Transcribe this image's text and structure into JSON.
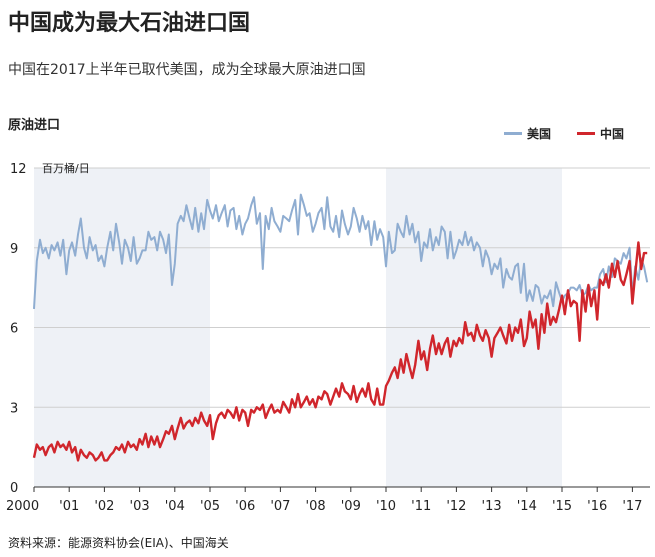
{
  "title": "中国成为最大石油进口国",
  "subtitle": "中国在2017上半年已取代美国，成为全球最大原油进口国",
  "source": "资料来源：能源资料协会(EIA)、中国海关",
  "chart_data": {
    "type": "line",
    "title": "原油进口",
    "ylabel": "百万桶/日",
    "xlabel": "",
    "ylim": [
      0,
      12
    ],
    "yticks": [
      0,
      3,
      6,
      9,
      12
    ],
    "xlim": [
      2000,
      2017.5
    ],
    "xticks": [
      {
        "x": 2000,
        "label": "2000"
      },
      {
        "x": 2001,
        "label": "'01"
      },
      {
        "x": 2002,
        "label": "'02"
      },
      {
        "x": 2003,
        "label": "'03"
      },
      {
        "x": 2004,
        "label": "'04"
      },
      {
        "x": 2005,
        "label": "'05"
      },
      {
        "x": 2006,
        "label": "'06"
      },
      {
        "x": 2007,
        "label": "'07"
      },
      {
        "x": 2008,
        "label": "'08"
      },
      {
        "x": 2009,
        "label": "'09"
      },
      {
        "x": 2010,
        "label": "'10"
      },
      {
        "x": 2011,
        "label": "'11"
      },
      {
        "x": 2012,
        "label": "'12"
      },
      {
        "x": 2013,
        "label": "'13"
      },
      {
        "x": 2014,
        "label": "'14"
      },
      {
        "x": 2015,
        "label": "'15"
      },
      {
        "x": 2016,
        "label": "'16"
      },
      {
        "x": 2017,
        "label": "'17"
      }
    ],
    "shaded_bands": [
      [
        2000,
        2005
      ],
      [
        2010,
        2015
      ]
    ],
    "grid": true,
    "legend_position": "top-right",
    "series": [
      {
        "name": "美国",
        "color": "#8fadd1",
        "x": [
          2000.0,
          2000.08,
          2000.17,
          2000.25,
          2000.33,
          2000.42,
          2000.5,
          2000.58,
          2000.67,
          2000.75,
          2000.83,
          2000.92,
          2001.0,
          2001.08,
          2001.17,
          2001.25,
          2001.33,
          2001.42,
          2001.5,
          2001.58,
          2001.67,
          2001.75,
          2001.83,
          2001.92,
          2002.0,
          2002.08,
          2002.17,
          2002.25,
          2002.33,
          2002.42,
          2002.5,
          2002.58,
          2002.67,
          2002.75,
          2002.83,
          2002.92,
          2003.0,
          2003.08,
          2003.17,
          2003.25,
          2003.33,
          2003.42,
          2003.5,
          2003.58,
          2003.67,
          2003.75,
          2003.83,
          2003.92,
          2004.0,
          2004.08,
          2004.17,
          2004.25,
          2004.33,
          2004.42,
          2004.5,
          2004.58,
          2004.67,
          2004.75,
          2004.83,
          2004.92,
          2005.0,
          2005.08,
          2005.17,
          2005.25,
          2005.33,
          2005.42,
          2005.5,
          2005.58,
          2005.67,
          2005.75,
          2005.83,
          2005.92,
          2006.0,
          2006.08,
          2006.17,
          2006.25,
          2006.33,
          2006.42,
          2006.5,
          2006.58,
          2006.67,
          2006.75,
          2006.83,
          2006.92,
          2007.0,
          2007.08,
          2007.17,
          2007.25,
          2007.33,
          2007.42,
          2007.5,
          2007.58,
          2007.67,
          2007.75,
          2007.83,
          2007.92,
          2008.0,
          2008.08,
          2008.17,
          2008.25,
          2008.33,
          2008.42,
          2008.5,
          2008.58,
          2008.67,
          2008.75,
          2008.83,
          2008.92,
          2009.0,
          2009.08,
          2009.17,
          2009.25,
          2009.33,
          2009.42,
          2009.5,
          2009.58,
          2009.67,
          2009.75,
          2009.83,
          2009.92,
          2010.0,
          2010.08,
          2010.17,
          2010.25,
          2010.33,
          2010.42,
          2010.5,
          2010.58,
          2010.67,
          2010.75,
          2010.83,
          2010.92,
          2011.0,
          2011.08,
          2011.17,
          2011.25,
          2011.33,
          2011.42,
          2011.5,
          2011.58,
          2011.67,
          2011.75,
          2011.83,
          2011.92,
          2012.0,
          2012.08,
          2012.17,
          2012.25,
          2012.33,
          2012.42,
          2012.5,
          2012.58,
          2012.67,
          2012.75,
          2012.83,
          2012.92,
          2013.0,
          2013.08,
          2013.17,
          2013.25,
          2013.33,
          2013.42,
          2013.5,
          2013.58,
          2013.67,
          2013.75,
          2013.83,
          2013.92,
          2014.0,
          2014.08,
          2014.17,
          2014.25,
          2014.33,
          2014.42,
          2014.5,
          2014.58,
          2014.67,
          2014.75,
          2014.83,
          2014.92,
          2015.0,
          2015.08,
          2015.17,
          2015.25,
          2015.33,
          2015.42,
          2015.5,
          2015.58,
          2015.67,
          2015.75,
          2015.83,
          2015.92,
          2016.0,
          2016.08,
          2016.17,
          2016.25,
          2016.33,
          2016.42,
          2016.5,
          2016.58,
          2016.67,
          2016.75,
          2016.83,
          2016.92,
          2017.0,
          2017.08,
          2017.17,
          2017.25,
          2017.33,
          2017.42
        ],
        "values": [
          6.7,
          8.5,
          9.3,
          8.8,
          9.0,
          8.6,
          9.1,
          8.9,
          9.2,
          8.7,
          9.3,
          8.0,
          8.9,
          9.2,
          8.7,
          9.5,
          10.1,
          9.0,
          8.6,
          9.4,
          8.9,
          9.1,
          8.5,
          8.7,
          8.3,
          9.0,
          9.6,
          8.9,
          9.9,
          9.2,
          8.4,
          9.3,
          9.0,
          8.5,
          9.4,
          8.4,
          8.6,
          8.9,
          8.9,
          9.6,
          9.3,
          9.4,
          8.9,
          9.6,
          9.3,
          8.8,
          9.5,
          7.6,
          8.4,
          9.9,
          10.2,
          10.0,
          10.6,
          10.1,
          9.7,
          10.5,
          9.6,
          10.3,
          9.7,
          10.8,
          10.4,
          10.1,
          10.6,
          10.0,
          10.3,
          10.6,
          9.8,
          10.4,
          10.5,
          9.7,
          10.2,
          9.5,
          9.9,
          10.1,
          10.6,
          10.9,
          9.9,
          10.3,
          8.2,
          10.2,
          9.7,
          10.5,
          10.0,
          9.8,
          9.6,
          10.2,
          10.1,
          10.0,
          10.4,
          10.8,
          9.5,
          11.0,
          10.6,
          10.2,
          10.3,
          9.6,
          9.9,
          10.3,
          10.5,
          9.7,
          10.9,
          9.8,
          9.6,
          10.2,
          9.4,
          10.4,
          9.9,
          9.5,
          9.8,
          10.5,
          10.1,
          9.6,
          10.2,
          9.7,
          10.0,
          9.1,
          10.0,
          9.3,
          9.7,
          9.4,
          8.3,
          9.6,
          8.8,
          8.9,
          9.9,
          9.6,
          9.4,
          10.2,
          9.5,
          9.9,
          9.2,
          9.6,
          8.5,
          9.2,
          9.0,
          9.7,
          8.9,
          9.4,
          9.1,
          9.8,
          9.6,
          8.6,
          9.6,
          8.6,
          8.9,
          9.3,
          9.1,
          9.6,
          9.1,
          9.4,
          8.9,
          9.2,
          9.0,
          8.3,
          8.9,
          8.6,
          8.0,
          8.4,
          8.2,
          8.6,
          7.5,
          8.2,
          7.9,
          7.8,
          8.3,
          8.4,
          7.3,
          8.4,
          7.0,
          7.4,
          7.0,
          7.6,
          7.5,
          6.9,
          7.2,
          7.1,
          7.4,
          6.8,
          7.7,
          7.3,
          7.0,
          7.2,
          7.3,
          7.5,
          7.5,
          7.4,
          7.6,
          7.2,
          7.3,
          7.6,
          7.4,
          7.5,
          7.5,
          8.0,
          8.2,
          7.7,
          8.3,
          7.9,
          8.6,
          8.5,
          8.4,
          8.8,
          8.6,
          9.0,
          7.2,
          8.3,
          7.8,
          8.6,
          8.3,
          7.7
        ]
      },
      {
        "name": "中国",
        "color": "#d0262c",
        "x": [
          2000.0,
          2000.08,
          2000.17,
          2000.25,
          2000.33,
          2000.42,
          2000.5,
          2000.58,
          2000.67,
          2000.75,
          2000.83,
          2000.92,
          2001.0,
          2001.08,
          2001.17,
          2001.25,
          2001.33,
          2001.42,
          2001.5,
          2001.58,
          2001.67,
          2001.75,
          2001.83,
          2001.92,
          2002.0,
          2002.08,
          2002.17,
          2002.25,
          2002.33,
          2002.42,
          2002.5,
          2002.58,
          2002.67,
          2002.75,
          2002.83,
          2002.92,
          2003.0,
          2003.08,
          2003.17,
          2003.25,
          2003.33,
          2003.42,
          2003.5,
          2003.58,
          2003.67,
          2003.75,
          2003.83,
          2003.92,
          2004.0,
          2004.08,
          2004.17,
          2004.25,
          2004.33,
          2004.42,
          2004.5,
          2004.58,
          2004.67,
          2004.75,
          2004.83,
          2004.92,
          2005.0,
          2005.08,
          2005.17,
          2005.25,
          2005.33,
          2005.42,
          2005.5,
          2005.58,
          2005.67,
          2005.75,
          2005.83,
          2005.92,
          2006.0,
          2006.08,
          2006.17,
          2006.25,
          2006.33,
          2006.42,
          2006.5,
          2006.58,
          2006.67,
          2006.75,
          2006.83,
          2006.92,
          2007.0,
          2007.08,
          2007.17,
          2007.25,
          2007.33,
          2007.42,
          2007.5,
          2007.58,
          2007.67,
          2007.75,
          2007.83,
          2007.92,
          2008.0,
          2008.08,
          2008.17,
          2008.25,
          2008.33,
          2008.42,
          2008.5,
          2008.58,
          2008.67,
          2008.75,
          2008.83,
          2008.92,
          2009.0,
          2009.08,
          2009.17,
          2009.25,
          2009.33,
          2009.42,
          2009.5,
          2009.58,
          2009.67,
          2009.75,
          2009.83,
          2009.92,
          2010.0,
          2010.08,
          2010.17,
          2010.25,
          2010.33,
          2010.42,
          2010.5,
          2010.58,
          2010.67,
          2010.75,
          2010.83,
          2010.92,
          2011.0,
          2011.08,
          2011.17,
          2011.25,
          2011.33,
          2011.42,
          2011.5,
          2011.58,
          2011.67,
          2011.75,
          2011.83,
          2011.92,
          2012.0,
          2012.08,
          2012.17,
          2012.25,
          2012.33,
          2012.42,
          2012.5,
          2012.58,
          2012.67,
          2012.75,
          2012.83,
          2012.92,
          2013.0,
          2013.08,
          2013.17,
          2013.25,
          2013.33,
          2013.42,
          2013.5,
          2013.58,
          2013.67,
          2013.75,
          2013.83,
          2013.92,
          2014.0,
          2014.08,
          2014.17,
          2014.25,
          2014.33,
          2014.42,
          2014.5,
          2014.58,
          2014.67,
          2014.75,
          2014.83,
          2014.92,
          2015.0,
          2015.08,
          2015.17,
          2015.25,
          2015.33,
          2015.42,
          2015.5,
          2015.58,
          2015.67,
          2015.75,
          2015.83,
          2015.92,
          2016.0,
          2016.08,
          2016.17,
          2016.25,
          2016.33,
          2016.42,
          2016.5,
          2016.58,
          2016.67,
          2016.75,
          2016.83,
          2016.92,
          2017.0,
          2017.08,
          2017.17,
          2017.25,
          2017.33,
          2017.42
        ],
        "values": [
          1.1,
          1.6,
          1.4,
          1.5,
          1.2,
          1.5,
          1.6,
          1.3,
          1.7,
          1.5,
          1.6,
          1.4,
          1.7,
          1.3,
          1.5,
          1.0,
          1.4,
          1.2,
          1.1,
          1.3,
          1.2,
          1.0,
          1.1,
          1.3,
          1.0,
          1.0,
          1.2,
          1.3,
          1.5,
          1.4,
          1.6,
          1.3,
          1.7,
          1.5,
          1.6,
          1.4,
          1.8,
          1.6,
          2.0,
          1.5,
          1.9,
          1.6,
          1.9,
          1.5,
          1.8,
          2.1,
          2.0,
          2.3,
          1.8,
          2.2,
          2.6,
          2.2,
          2.4,
          2.5,
          2.3,
          2.6,
          2.4,
          2.8,
          2.5,
          2.3,
          2.7,
          1.8,
          2.4,
          2.7,
          2.8,
          2.6,
          2.9,
          2.8,
          2.6,
          3.0,
          2.5,
          2.9,
          2.8,
          2.3,
          2.9,
          2.8,
          3.0,
          2.9,
          3.1,
          2.6,
          2.9,
          3.1,
          2.8,
          2.9,
          2.8,
          3.2,
          3.0,
          2.8,
          3.3,
          3.0,
          3.5,
          3.0,
          3.2,
          3.4,
          3.1,
          3.3,
          3.0,
          3.4,
          3.3,
          3.6,
          3.5,
          3.1,
          3.4,
          3.7,
          3.4,
          3.9,
          3.6,
          3.5,
          3.3,
          3.8,
          3.2,
          3.5,
          3.7,
          3.4,
          3.9,
          3.3,
          3.1,
          3.7,
          3.1,
          3.1,
          3.8,
          4.0,
          4.3,
          4.5,
          4.1,
          4.8,
          4.3,
          5.0,
          4.5,
          4.1,
          4.6,
          5.5,
          4.8,
          5.1,
          4.4,
          5.2,
          5.7,
          5.0,
          5.4,
          5.0,
          5.4,
          5.6,
          4.9,
          5.5,
          5.3,
          5.6,
          5.4,
          6.2,
          5.7,
          5.8,
          5.5,
          6.1,
          5.7,
          5.5,
          5.9,
          5.6,
          4.9,
          5.6,
          5.8,
          6.0,
          5.7,
          5.4,
          6.1,
          5.5,
          6.0,
          5.8,
          6.3,
          5.3,
          5.6,
          6.6,
          6.0,
          6.3,
          5.2,
          6.5,
          5.8,
          6.9,
          6.1,
          6.4,
          6.2,
          6.7,
          7.2,
          6.5,
          7.4,
          6.8,
          7.0,
          6.9,
          5.5,
          7.4,
          6.6,
          7.6,
          6.8,
          7.4,
          6.3,
          7.8,
          7.6,
          8.0,
          7.5,
          8.4,
          7.9,
          8.5,
          7.8,
          7.6,
          8.0,
          8.5,
          6.9,
          8.0,
          9.2,
          8.2,
          8.8,
          8.8
        ]
      }
    ]
  }
}
